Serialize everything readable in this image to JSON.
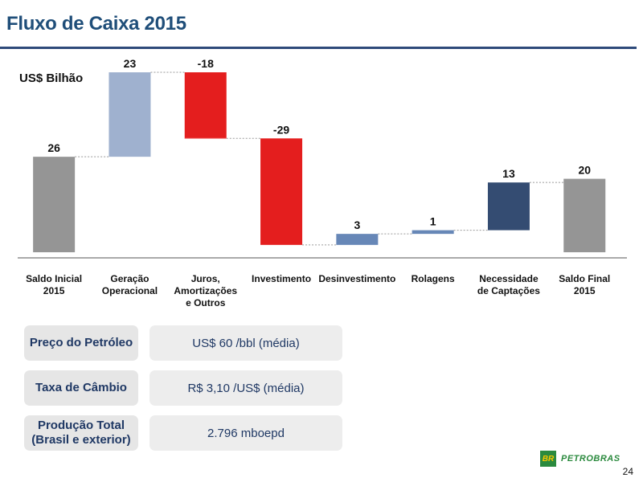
{
  "slide": {
    "title": "Fluxo de Caixa 2015",
    "unit_label": "US$ Bilhão",
    "page_number": "24",
    "logo_text": "PETROBRAS",
    "logo_mark": "BR"
  },
  "chart_data": {
    "type": "waterfall",
    "title": "Fluxo de Caixa 2015",
    "ylabel": "US$ Bilhão",
    "categories": [
      "Saldo Inicial\n2015",
      "Geração\nOperacional",
      "Juros,\nAmortizações\ne Outros",
      "Investimento",
      "Desinvestimento",
      "Rolagens",
      "Necessidade\nde Captações",
      "Saldo Final\n2015"
    ],
    "values": [
      26,
      23,
      -18,
      -29,
      3,
      1,
      13,
      20
    ],
    "labels": [
      "26",
      "23",
      "-18",
      "-29",
      "3",
      "1",
      "13",
      "20"
    ],
    "kinds": [
      "total",
      "delta",
      "delta",
      "delta",
      "delta",
      "delta",
      "delta",
      "total"
    ],
    "colors": [
      "#959595",
      "#9fb1cf",
      "#e41e1e",
      "#e41e1e",
      "#6787b7",
      "#6787b7",
      "#344c72",
      "#959595"
    ],
    "ylim": [
      0,
      49
    ],
    "grid": false
  },
  "info": [
    {
      "label": "Preço do Petróleo",
      "value": "US$ 60 /bbl (média)"
    },
    {
      "label": "Taxa de Câmbio",
      "value": "R$ 3,10 /US$ (média)"
    },
    {
      "label": "Produção Total\n(Brasil e exterior)",
      "value": "2.796 mboepd"
    }
  ],
  "colors": {
    "title": "#1f4e79",
    "rule": "#2e4a7a",
    "info_text": "#1f3864",
    "logo_green": "#2b8a3e",
    "logo_yellow": "#f6c700"
  }
}
